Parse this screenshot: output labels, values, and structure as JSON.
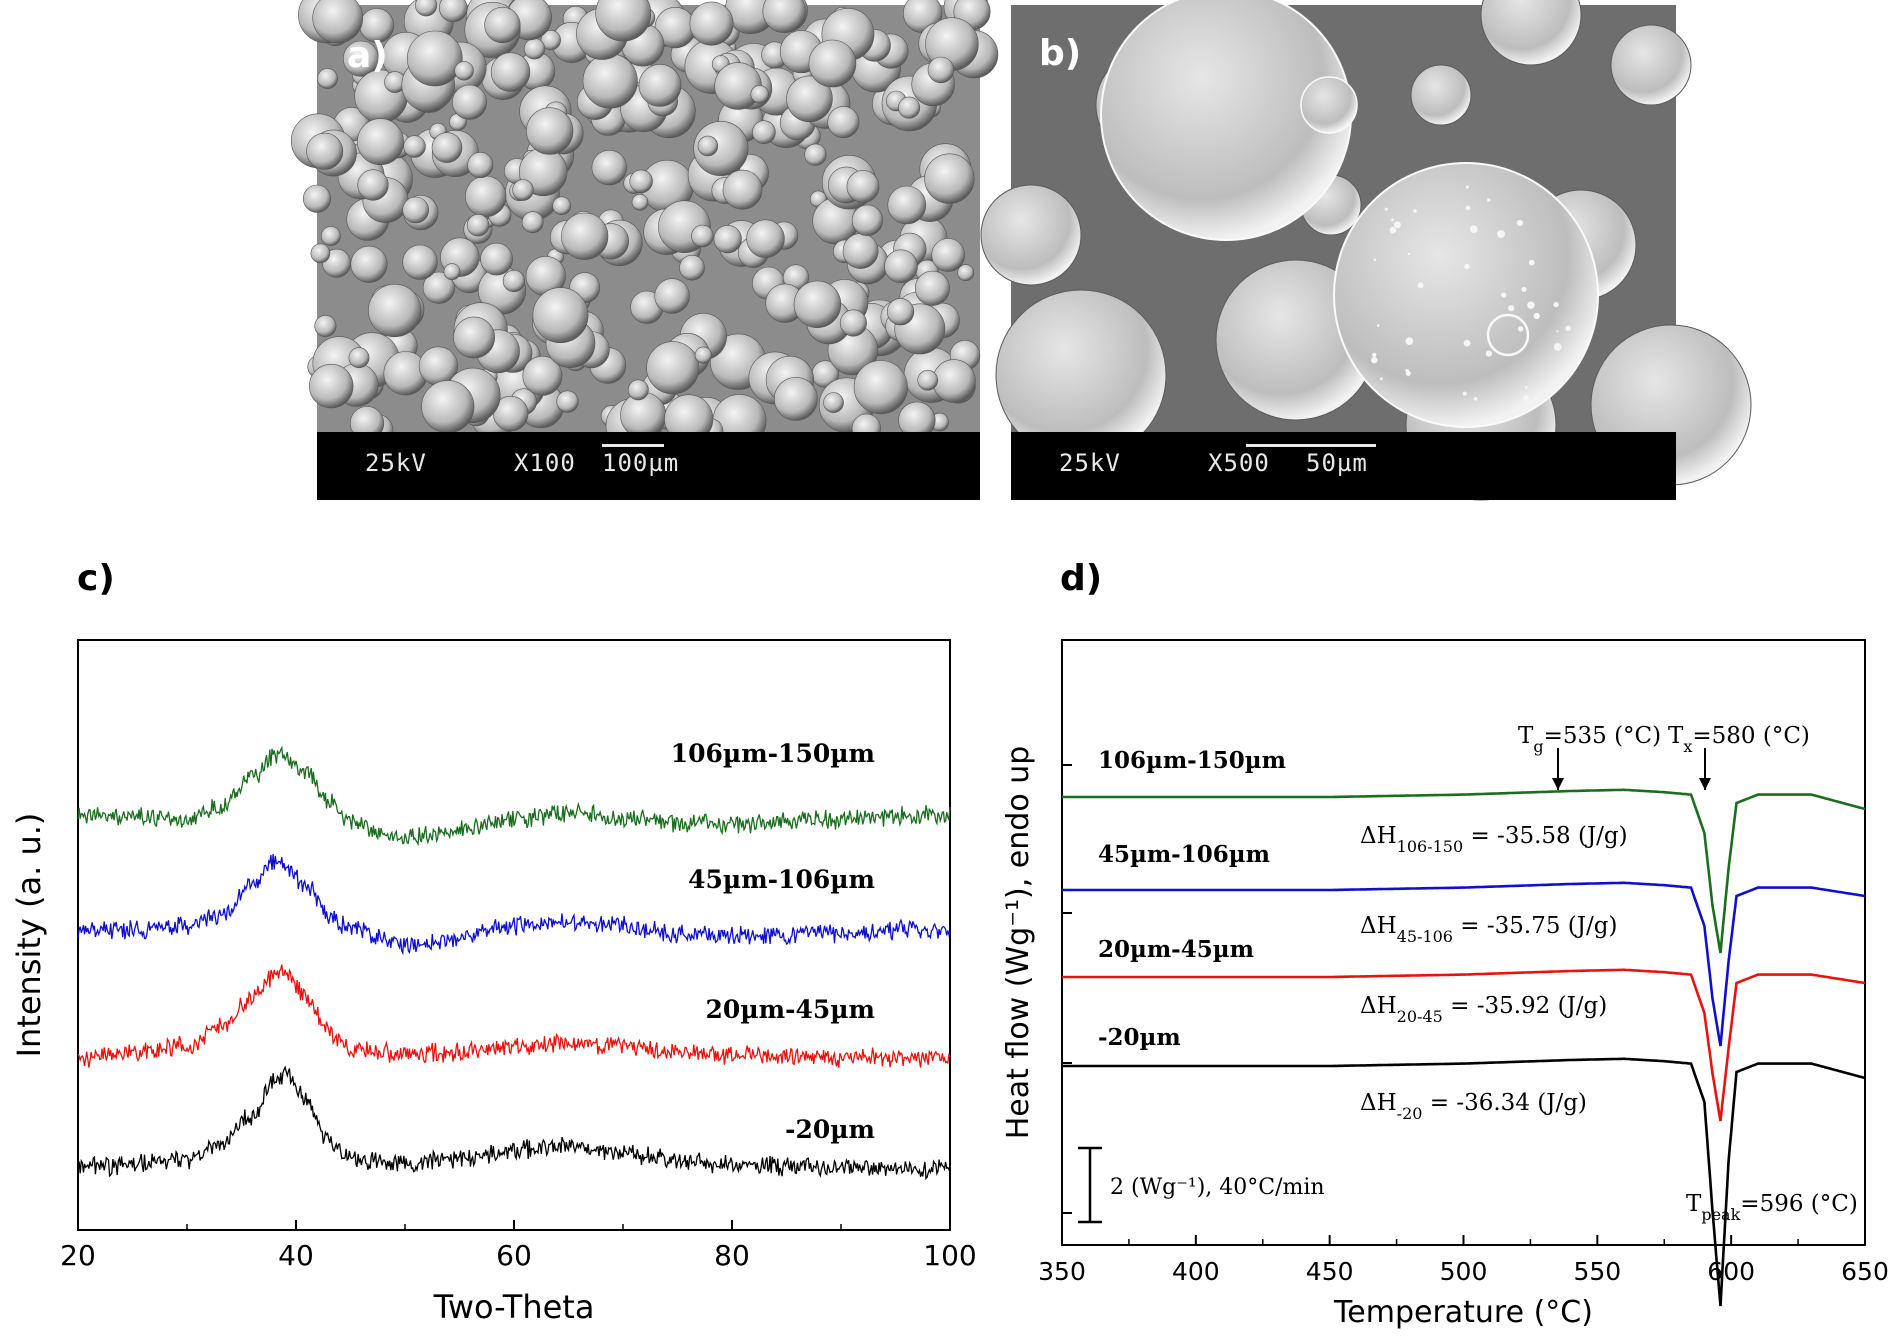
{
  "panels": {
    "a": {
      "label": "a)",
      "info_kv": "25kV",
      "info_mag": "X100",
      "info_scale": "100µm"
    },
    "b": {
      "label": "b)",
      "info_kv": "25kV",
      "info_mag": "X500",
      "info_scale": "50µm"
    },
    "c": {
      "label": "c)"
    },
    "d": {
      "label": "d)"
    }
  },
  "chart_data": [
    {
      "type": "line",
      "xlabel": "Two-Theta",
      "ylabel": "Intensity (a. u.)",
      "xlim": [
        20,
        100
      ],
      "xticks": [
        "20",
        "40",
        "60",
        "80",
        "100"
      ],
      "yticks_shown": false,
      "series": [
        {
          "name": "-20µm",
          "color": "#000000",
          "offset": 0,
          "x": [
            20,
            25,
            30,
            33,
            36,
            38,
            39,
            41,
            43,
            45,
            50,
            55,
            60,
            65,
            70,
            75,
            80,
            85,
            90,
            95,
            100
          ],
          "y": [
            0.0,
            0.02,
            0.06,
            0.15,
            0.35,
            0.58,
            0.63,
            0.45,
            0.18,
            0.06,
            0.02,
            0.06,
            0.12,
            0.15,
            0.1,
            0.05,
            0.02,
            0.01,
            0.0,
            0.0,
            0.0
          ]
        },
        {
          "name": "20µm-45µm",
          "color": "#e8130f",
          "offset": 1,
          "x": [
            20,
            25,
            30,
            33,
            36,
            38,
            39,
            41,
            43,
            45,
            50,
            55,
            60,
            65,
            70,
            75,
            80,
            85,
            90,
            95,
            100
          ],
          "y": [
            0.0,
            0.03,
            0.08,
            0.2,
            0.4,
            0.55,
            0.56,
            0.4,
            0.18,
            0.06,
            0.02,
            0.04,
            0.08,
            0.1,
            0.07,
            0.04,
            0.02,
            0.01,
            0.0,
            0.0,
            0.0
          ]
        },
        {
          "name": "45µm-106µm",
          "color": "#1010cc",
          "offset": 2,
          "x": [
            20,
            25,
            30,
            33,
            36,
            38,
            39,
            41,
            43,
            45,
            50,
            55,
            60,
            65,
            70,
            75,
            80,
            85,
            90,
            95,
            100
          ],
          "y": [
            0.0,
            0.0,
            0.03,
            0.1,
            0.3,
            0.45,
            0.42,
            0.3,
            0.08,
            0.01,
            -0.1,
            -0.06,
            0.03,
            0.05,
            0.03,
            -0.03,
            -0.04,
            -0.03,
            -0.02,
            0.0,
            0.0
          ]
        },
        {
          "name": "106µm-150µm",
          "color": "#1a6e1e",
          "offset": 3,
          "x": [
            20,
            25,
            30,
            33,
            36,
            38,
            39,
            41,
            43,
            45,
            50,
            55,
            60,
            65,
            70,
            75,
            80,
            85,
            90,
            95,
            100
          ],
          "y": [
            0.0,
            -0.01,
            -0.04,
            0.05,
            0.25,
            0.4,
            0.38,
            0.28,
            0.1,
            -0.05,
            -0.15,
            -0.1,
            -0.03,
            0.02,
            -0.02,
            -0.05,
            -0.06,
            -0.04,
            -0.03,
            -0.01,
            0.0
          ]
        }
      ],
      "labels": [
        "-20µm",
        "20µm-45µm",
        "45µm-106µm",
        "106µm-150µm"
      ]
    },
    {
      "type": "line",
      "xlabel": "Temperature (°C)",
      "ylabel": "Heat flow (Wg⁻¹), endo up",
      "xlim": [
        350,
        650
      ],
      "xticks": [
        "350",
        "400",
        "450",
        "500",
        "550",
        "600",
        "650"
      ],
      "series": [
        {
          "name": "-20µm",
          "color": "#000000",
          "x": [
            350,
            400,
            450,
            500,
            540,
            560,
            575,
            585,
            590,
            593,
            596,
            599,
            602,
            610,
            630,
            650
          ],
          "y": [
            0,
            0,
            0,
            0.02,
            0.05,
            0.06,
            0.04,
            0.02,
            -0.3,
            -1.2,
            -2.0,
            -0.8,
            -0.05,
            0.02,
            0.02,
            -0.1
          ]
        },
        {
          "name": "20µm-45µm",
          "color": "#e8130f",
          "x": [
            350,
            400,
            450,
            500,
            540,
            560,
            575,
            585,
            590,
            593,
            596,
            599,
            602,
            610,
            630,
            650
          ],
          "y": [
            0,
            0,
            0,
            0.02,
            0.05,
            0.06,
            0.04,
            0.02,
            -0.3,
            -0.8,
            -1.2,
            -0.6,
            -0.05,
            0.02,
            0.02,
            -0.05
          ]
        },
        {
          "name": "45µm-106µm",
          "color": "#1010cc",
          "x": [
            350,
            400,
            450,
            500,
            540,
            560,
            575,
            585,
            590,
            593,
            596,
            599,
            602,
            610,
            630,
            650
          ],
          "y": [
            0,
            0,
            0,
            0.02,
            0.05,
            0.06,
            0.04,
            0.02,
            -0.3,
            -0.9,
            -1.3,
            -0.6,
            -0.05,
            0.02,
            0.02,
            -0.05
          ]
        },
        {
          "name": "106µm-150µm",
          "color": "#1a6e1e",
          "x": [
            350,
            400,
            450,
            500,
            540,
            560,
            575,
            585,
            590,
            593,
            596,
            599,
            602,
            610,
            630,
            650
          ],
          "y": [
            0,
            0,
            0,
            0.02,
            0.05,
            0.06,
            0.04,
            0.02,
            -0.3,
            -0.9,
            -1.3,
            -0.6,
            -0.05,
            0.02,
            0.02,
            -0.1
          ]
        }
      ],
      "sample_labels": [
        "106µm-150µm",
        "45µm-106µm",
        "20µm-45µm",
        "-20µm"
      ],
      "annotations": {
        "tg": {
          "main": "T",
          "sub": "g",
          "rest": "=535 (°C)",
          "x": 535
        },
        "tx": {
          "main": "T",
          "sub": "x",
          "rest": "=580 (°C)",
          "x": 590
        },
        "tpeak": {
          "main": "T",
          "sub": "peak",
          "rest": "=596 (°C)"
        },
        "dh": [
          {
            "main": "ΔH",
            "sub": "106-150",
            "rest": " = -35.58 (J/g)"
          },
          {
            "main": "ΔH",
            "sub": "45-106",
            "rest": " = -35.75 (J/g)"
          },
          {
            "main": "ΔH",
            "sub": "20-45",
            "rest": " = -35.92 (J/g)"
          },
          {
            "main": "ΔH",
            "sub": "-20",
            "rest": " = -36.34 (J/g)"
          }
        ],
        "scale": "2 (Wg⁻¹), 40°C/min"
      }
    }
  ]
}
